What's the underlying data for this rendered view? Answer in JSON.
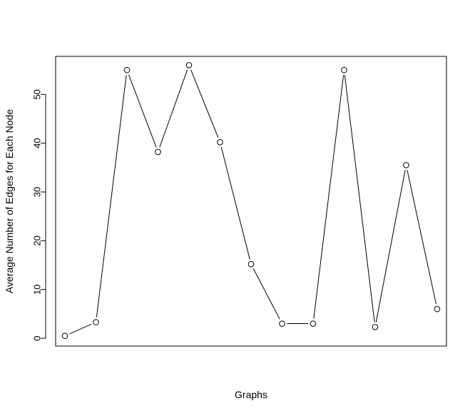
{
  "chart_data": {
    "type": "line",
    "markers": "open-circle",
    "line_color": "#000000",
    "title": "",
    "xlabel": "Graphs",
    "ylabel": "Average Number of Edges for Each Node",
    "x": [
      1,
      2,
      3,
      4,
      5,
      6,
      7,
      8,
      9,
      10,
      11,
      12,
      13
    ],
    "values": [
      0.5,
      3.3,
      55.0,
      38.2,
      56.0,
      40.2,
      15.2,
      3.0,
      3.0,
      55.0,
      2.3,
      35.5,
      6.0
    ],
    "xlim": [
      0.7,
      13.3
    ],
    "ylim": [
      -1.6,
      57.8
    ],
    "yticks": [
      0,
      10,
      20,
      30,
      40,
      50
    ],
    "ytick_labels": [
      "0",
      "10",
      "20",
      "30",
      "40",
      "50"
    ],
    "xticks_shown": false,
    "grid": false
  }
}
